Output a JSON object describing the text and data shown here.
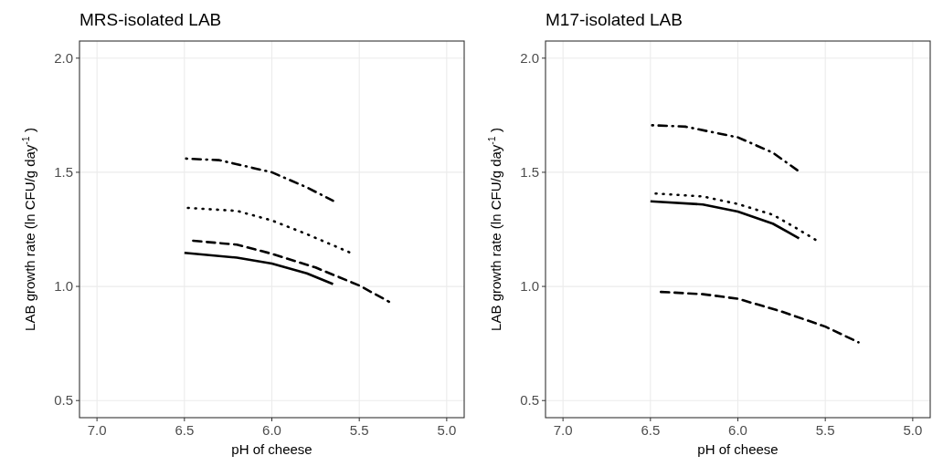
{
  "chart_data": [
    {
      "type": "line",
      "title": "MRS-isolated LAB",
      "xlabel": "pH of cheese",
      "ylabel": "LAB growth rate (ln CFU/g  day$^{-1}$ )",
      "xlim": [
        7.1,
        4.9
      ],
      "ylim": [
        0.425,
        2.075
      ],
      "xticks": [
        {
          "value": 7.0,
          "label": "7.0"
        },
        {
          "value": 6.5,
          "label": "6.5"
        },
        {
          "value": 6.0,
          "label": "6.0"
        },
        {
          "value": 5.5,
          "label": "5.5"
        },
        {
          "value": 5.0,
          "label": "5.0"
        }
      ],
      "yticks": [
        {
          "value": 0.5,
          "label": "0.5"
        },
        {
          "value": 1.0,
          "label": "1.0"
        },
        {
          "value": 1.5,
          "label": "1.5"
        },
        {
          "value": 2.0,
          "label": "2.0"
        }
      ],
      "grid": true,
      "series": [
        {
          "color": "#000000",
          "line_style": "dashdot",
          "x": [
            6.49,
            6.3,
            6.0,
            5.8,
            5.65
          ],
          "values": [
            1.56,
            1.553,
            1.5,
            1.434,
            1.375
          ]
        },
        {
          "color": "#000000",
          "line_style": "dotted",
          "x": [
            6.48,
            6.2,
            6.0,
            5.8,
            5.555
          ],
          "values": [
            1.344,
            1.331,
            1.289,
            1.229,
            1.149
          ]
        },
        {
          "color": "#000000",
          "line_style": "dashed",
          "x": [
            6.45,
            6.2,
            6.0,
            5.75,
            5.5,
            5.33
          ],
          "values": [
            1.2,
            1.183,
            1.143,
            1.083,
            1.004,
            0.933
          ]
        },
        {
          "color": "#000000",
          "line_style": "solid",
          "x": [
            6.5,
            6.2,
            6.0,
            5.8,
            5.65
          ],
          "values": [
            1.147,
            1.126,
            1.1,
            1.057,
            1.01
          ]
        }
      ]
    },
    {
      "type": "line",
      "title": "M17-isolated LAB",
      "xlabel": "pH of cheese",
      "ylabel": "LAB growth rate (ln CFU/g  day$^{-1}$ )",
      "xlim": [
        7.1,
        4.9
      ],
      "ylim": [
        0.425,
        2.075
      ],
      "xticks": [
        {
          "value": 7.0,
          "label": "7.0"
        },
        {
          "value": 6.5,
          "label": "6.5"
        },
        {
          "value": 6.0,
          "label": "6.0"
        },
        {
          "value": 5.5,
          "label": "5.5"
        },
        {
          "value": 5.0,
          "label": "5.0"
        }
      ],
      "yticks": [
        {
          "value": 0.5,
          "label": "0.5"
        },
        {
          "value": 1.0,
          "label": "1.0"
        },
        {
          "value": 1.5,
          "label": "1.5"
        },
        {
          "value": 2.0,
          "label": "2.0"
        }
      ],
      "grid": true,
      "series": [
        {
          "color": "#000000",
          "line_style": "dashdot",
          "x": [
            6.49,
            6.3,
            6.0,
            5.8,
            5.66
          ],
          "values": [
            1.706,
            1.7,
            1.653,
            1.586,
            1.509
          ]
        },
        {
          "color": "#000000",
          "line_style": "dotted",
          "x": [
            6.47,
            6.2,
            6.0,
            5.8,
            5.65,
            5.555
          ],
          "values": [
            1.407,
            1.394,
            1.361,
            1.314,
            1.248,
            1.204
          ]
        },
        {
          "color": "#000000",
          "line_style": "solid",
          "x": [
            6.5,
            6.2,
            6.0,
            5.8,
            5.65
          ],
          "values": [
            1.373,
            1.359,
            1.328,
            1.275,
            1.211
          ]
        },
        {
          "color": "#000000",
          "line_style": "dashed",
          "x": [
            6.44,
            6.2,
            6.0,
            5.75,
            5.5,
            5.31
          ],
          "values": [
            0.976,
            0.966,
            0.946,
            0.89,
            0.824,
            0.755
          ]
        }
      ]
    }
  ]
}
